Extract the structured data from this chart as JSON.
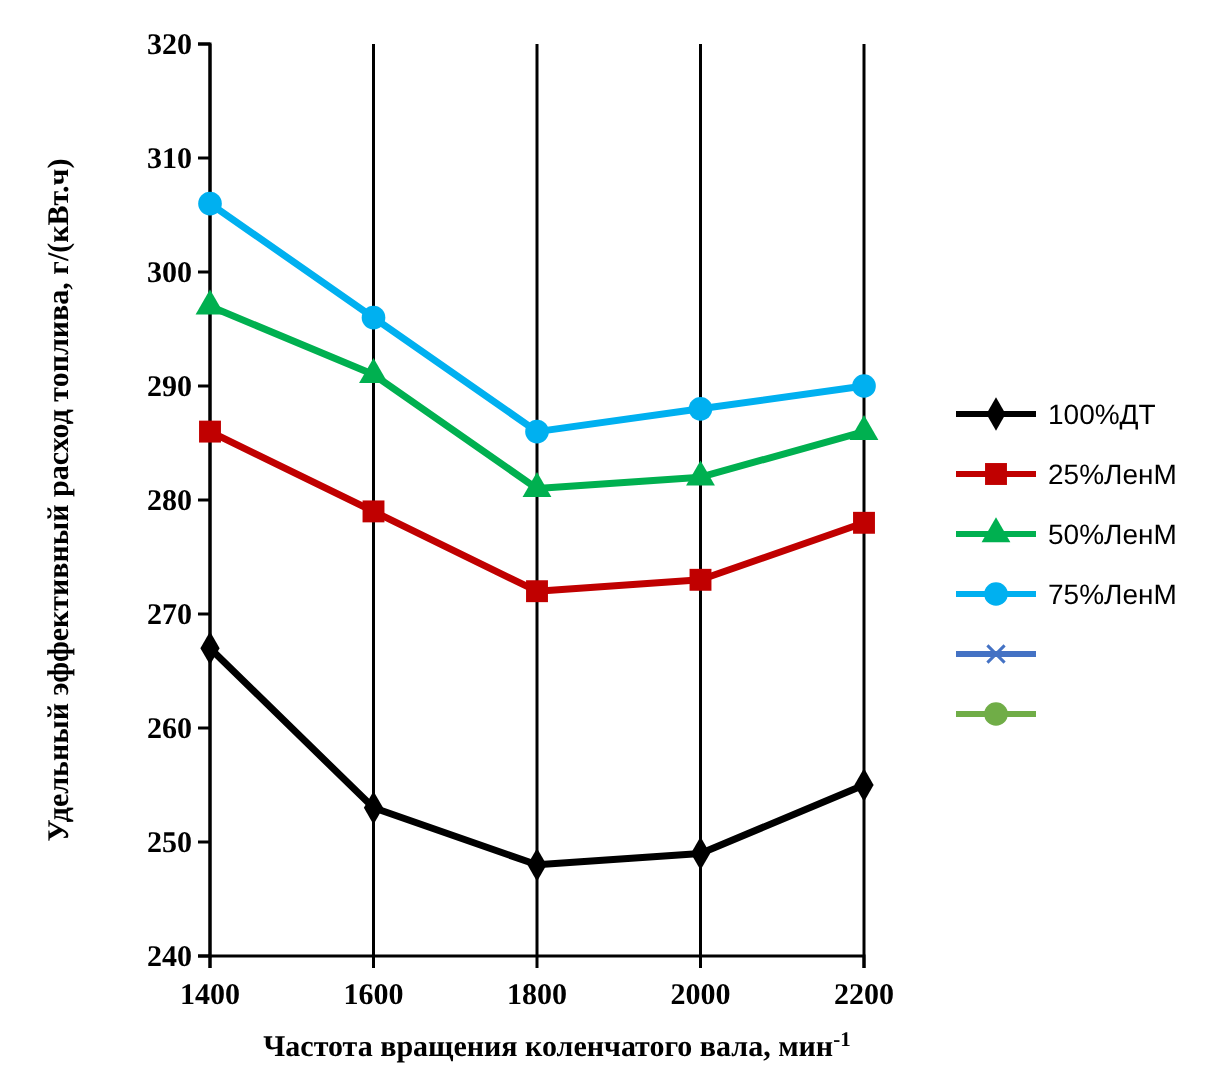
{
  "chart_data": {
    "type": "line",
    "xlabel": "Частота вращения коленчатого вала, мин$^{-1}$",
    "ylabel": "Удельный эффективный расход топлива, г/(кВт.ч)",
    "x": [
      1400,
      1600,
      1800,
      2000,
      2200
    ],
    "xlim": [
      1400,
      2200
    ],
    "xticks": [
      1400,
      1600,
      1800,
      2000,
      2200
    ],
    "ylim": [
      240,
      320
    ],
    "yticks": [
      240,
      250,
      260,
      270,
      280,
      290,
      300,
      310,
      320
    ],
    "grid": "x",
    "legend": "right",
    "series": [
      {
        "name": "100%ДТ",
        "color": "#000000",
        "marker": "diamond",
        "values": [
          267,
          253,
          248,
          249,
          255
        ]
      },
      {
        "name": "25%ЛенМ",
        "color": "#c00000",
        "marker": "square",
        "values": [
          286,
          279,
          272,
          273,
          278
        ]
      },
      {
        "name": "50%ЛенМ",
        "color": "#00b050",
        "marker": "triangle",
        "values": [
          297,
          291,
          281,
          282,
          286
        ]
      },
      {
        "name": "75%ЛенМ",
        "color": "#00b0f0",
        "marker": "circle",
        "values": [
          306,
          296,
          286,
          288,
          290
        ]
      },
      {
        "color": "#4472c4",
        "marker": "cross",
        "values": [
          null,
          null,
          null,
          null,
          null
        ]
      },
      {
        "color": "#70ad47",
        "marker": "circle",
        "values": [
          null,
          null,
          null,
          null,
          null
        ]
      }
    ]
  }
}
